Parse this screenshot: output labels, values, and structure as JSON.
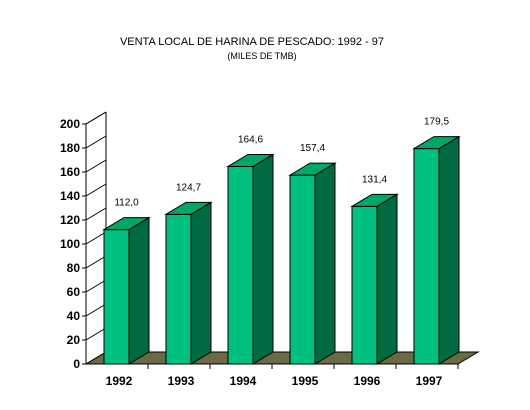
{
  "chart_data": {
    "type": "bar",
    "title": "VENTA LOCAL DE HARINA DE PESCADO: 1992 - 97",
    "subtitle": "(MILES DE TMB)",
    "categories": [
      "1992",
      "1993",
      "1994",
      "1995",
      "1996",
      "1997"
    ],
    "values": [
      112.0,
      124.7,
      164.6,
      157.4,
      131.4,
      179.5
    ],
    "data_labels": [
      "112,0",
      "124,7",
      "164,6",
      "157,4",
      "131,4",
      "179,5"
    ],
    "yticks": [
      "0",
      "20",
      "40",
      "60",
      "80",
      "100",
      "120",
      "140",
      "160",
      "180",
      "200"
    ],
    "ylim": [
      0,
      200
    ],
    "grid": false,
    "legend": "none",
    "style": "3d",
    "colors": {
      "bar_front": "#00c080",
      "bar_side": "#006a40",
      "bar_top": "#00a868",
      "floor": "#6b6a45",
      "axis": "#000000"
    }
  }
}
